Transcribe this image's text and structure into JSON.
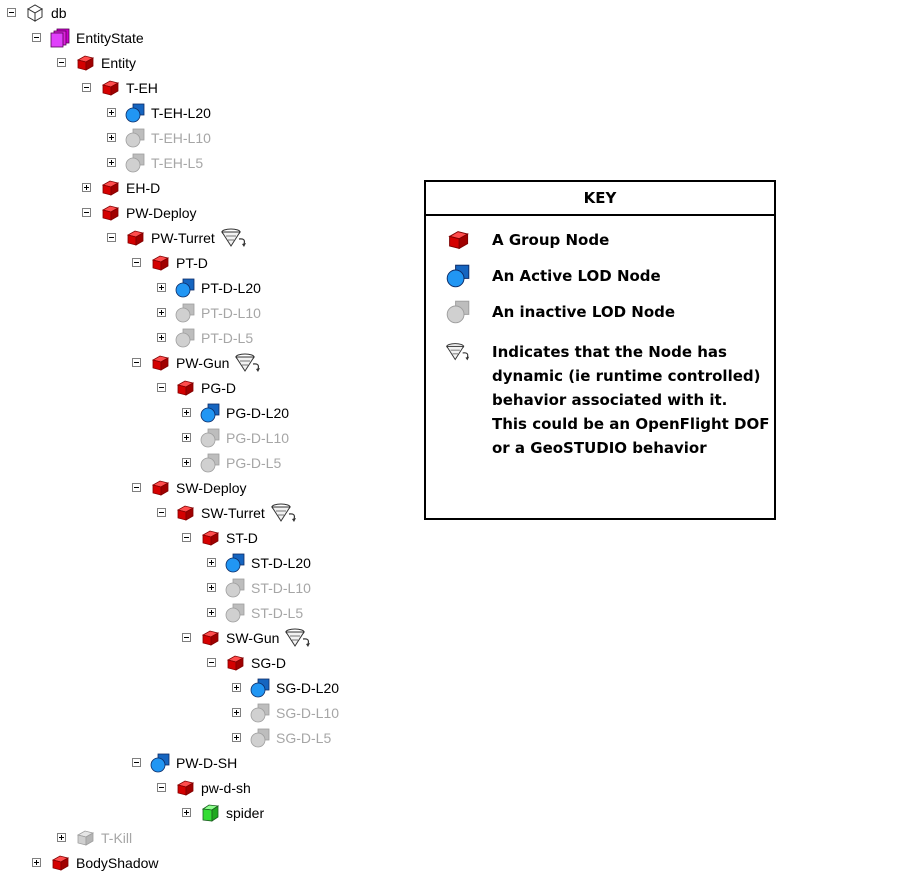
{
  "tree": {
    "nodes": [
      {
        "label": "db",
        "depth": 0,
        "toggle": "minus",
        "icon": "db",
        "active": true,
        "dynamic": false
      },
      {
        "label": "EntityState",
        "depth": 1,
        "toggle": "minus",
        "icon": "entitystate",
        "active": true,
        "dynamic": false
      },
      {
        "label": "Entity",
        "depth": 2,
        "toggle": "minus",
        "icon": "group",
        "active": true,
        "dynamic": false
      },
      {
        "label": "T-EH",
        "depth": 3,
        "toggle": "minus",
        "icon": "group",
        "active": true,
        "dynamic": false
      },
      {
        "label": "T-EH-L20",
        "depth": 4,
        "toggle": "plus",
        "icon": "lod-active",
        "active": true,
        "dynamic": false
      },
      {
        "label": "T-EH-L10",
        "depth": 4,
        "toggle": "plus",
        "icon": "lod-inactive",
        "active": false,
        "dynamic": false
      },
      {
        "label": "T-EH-L5",
        "depth": 4,
        "toggle": "plus",
        "icon": "lod-inactive",
        "active": false,
        "dynamic": false
      },
      {
        "label": "EH-D",
        "depth": 3,
        "toggle": "plus",
        "icon": "group",
        "active": true,
        "dynamic": false
      },
      {
        "label": "PW-Deploy",
        "depth": 3,
        "toggle": "minus",
        "icon": "group",
        "active": true,
        "dynamic": false
      },
      {
        "label": "PW-Turret",
        "depth": 4,
        "toggle": "minus",
        "icon": "group",
        "active": true,
        "dynamic": true
      },
      {
        "label": "PT-D",
        "depth": 5,
        "toggle": "minus",
        "icon": "group",
        "active": true,
        "dynamic": false
      },
      {
        "label": "PT-D-L20",
        "depth": 6,
        "toggle": "plus",
        "icon": "lod-active",
        "active": true,
        "dynamic": false
      },
      {
        "label": "PT-D-L10",
        "depth": 6,
        "toggle": "plus",
        "icon": "lod-inactive",
        "active": false,
        "dynamic": false
      },
      {
        "label": "PT-D-L5",
        "depth": 6,
        "toggle": "plus",
        "icon": "lod-inactive",
        "active": false,
        "dynamic": false
      },
      {
        "label": "PW-Gun",
        "depth": 5,
        "toggle": "minus",
        "icon": "group",
        "active": true,
        "dynamic": true
      },
      {
        "label": "PG-D",
        "depth": 6,
        "toggle": "minus",
        "icon": "group",
        "active": true,
        "dynamic": false
      },
      {
        "label": "PG-D-L20",
        "depth": 7,
        "toggle": "plus",
        "icon": "lod-active",
        "active": true,
        "dynamic": false
      },
      {
        "label": "PG-D-L10",
        "depth": 7,
        "toggle": "plus",
        "icon": "lod-inactive",
        "active": false,
        "dynamic": false
      },
      {
        "label": "PG-D-L5",
        "depth": 7,
        "toggle": "plus",
        "icon": "lod-inactive",
        "active": false,
        "dynamic": false
      },
      {
        "label": "SW-Deploy",
        "depth": 5,
        "toggle": "minus",
        "icon": "group",
        "active": true,
        "dynamic": false
      },
      {
        "label": "SW-Turret",
        "depth": 6,
        "toggle": "minus",
        "icon": "group",
        "active": true,
        "dynamic": true
      },
      {
        "label": "ST-D",
        "depth": 7,
        "toggle": "minus",
        "icon": "group",
        "active": true,
        "dynamic": false
      },
      {
        "label": "ST-D-L20",
        "depth": 8,
        "toggle": "plus",
        "icon": "lod-active",
        "active": true,
        "dynamic": false
      },
      {
        "label": "ST-D-L10",
        "depth": 8,
        "toggle": "plus",
        "icon": "lod-inactive",
        "active": false,
        "dynamic": false
      },
      {
        "label": "ST-D-L5",
        "depth": 8,
        "toggle": "plus",
        "icon": "lod-inactive",
        "active": false,
        "dynamic": false
      },
      {
        "label": "SW-Gun",
        "depth": 7,
        "toggle": "minus",
        "icon": "group",
        "active": true,
        "dynamic": true
      },
      {
        "label": "SG-D",
        "depth": 8,
        "toggle": "minus",
        "icon": "group",
        "active": true,
        "dynamic": false
      },
      {
        "label": "SG-D-L20",
        "depth": 9,
        "toggle": "plus",
        "icon": "lod-active",
        "active": true,
        "dynamic": false
      },
      {
        "label": "SG-D-L10",
        "depth": 9,
        "toggle": "plus",
        "icon": "lod-inactive",
        "active": false,
        "dynamic": false
      },
      {
        "label": "SG-D-L5",
        "depth": 9,
        "toggle": "plus",
        "icon": "lod-inactive",
        "active": false,
        "dynamic": false
      },
      {
        "label": "PW-D-SH",
        "depth": 5,
        "toggle": "minus",
        "icon": "lod-active",
        "active": true,
        "dynamic": false
      },
      {
        "label": "pw-d-sh",
        "depth": 6,
        "toggle": "minus",
        "icon": "group",
        "active": true,
        "dynamic": false
      },
      {
        "label": "spider",
        "depth": 7,
        "toggle": "plus",
        "icon": "object",
        "active": true,
        "dynamic": false
      },
      {
        "label": "T-Kill",
        "depth": 2,
        "toggle": "plus",
        "icon": "group-inactive",
        "active": false,
        "dynamic": false
      },
      {
        "label": "BodyShadow",
        "depth": 1,
        "toggle": "plus",
        "icon": "group",
        "active": true,
        "dynamic": false
      }
    ]
  },
  "key": {
    "title": "KEY",
    "group": "A Group Node",
    "active_lod": "An Active LOD Node",
    "inactive_lod": "An inactive LOD Node",
    "dynamic_lines": [
      "Indicates that the Node has",
      "dynamic (ie runtime controlled)",
      "behavior associated with it.",
      "This could be an OpenFlight DOF",
      "or a GeoSTUDIO behavior"
    ]
  },
  "colors": {
    "group": "#e00000",
    "active_lod": "#1e88e5",
    "inactive_lod": "#c8c8c8",
    "object": "#33dd33",
    "entitystate": "#cc00cc",
    "inactive_text": "#a6a6a6"
  }
}
